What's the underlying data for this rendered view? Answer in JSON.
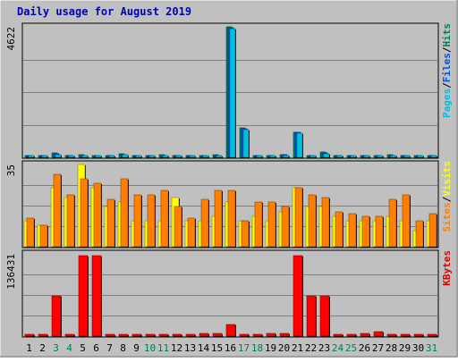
{
  "chart_data": {
    "title": "Daily usage for August 2019",
    "days": [
      "1",
      "2",
      "3",
      "4",
      "5",
      "6",
      "7",
      "8",
      "9",
      "10",
      "11",
      "12",
      "13",
      "14",
      "15",
      "16",
      "17",
      "18",
      "19",
      "20",
      "21",
      "22",
      "23",
      "24",
      "25",
      "26",
      "27",
      "28",
      "29",
      "30",
      "31"
    ],
    "weekend_days": [
      "3",
      "4",
      "10",
      "11",
      "17",
      "18",
      "24",
      "25",
      "31"
    ],
    "panels": [
      {
        "type": "bar",
        "id": "top",
        "ymax": 4622,
        "ymax_label": "4622",
        "legend": [
          {
            "text": "Pages",
            "color": "#00c0e0"
          },
          {
            "text": "/",
            "color": "#000000"
          },
          {
            "text": "Files",
            "color": "#0050e0"
          },
          {
            "text": "/",
            "color": "#000000"
          },
          {
            "text": "Hits",
            "color": "#008060"
          }
        ],
        "series": [
          {
            "name": "Hits",
            "color": "#008060",
            "values": [
              35,
              35,
              150,
              60,
              90,
              70,
              70,
              120,
              70,
              60,
              90,
              60,
              50,
              50,
              80,
              4622,
              1050,
              60,
              55,
              90,
              900,
              65,
              180,
              65,
              60,
              60,
              60,
              80,
              70,
              60,
              60
            ]
          },
          {
            "name": "Files",
            "color": "#0050e0",
            "values": [
              30,
              30,
              120,
              50,
              75,
              60,
              60,
              100,
              60,
              50,
              75,
              50,
              45,
              40,
              70,
              4600,
              1020,
              50,
              50,
              80,
              880,
              55,
              160,
              55,
              50,
              50,
              50,
              70,
              60,
              50,
              50
            ]
          },
          {
            "name": "Pages",
            "color": "#00c0e0",
            "values": [
              25,
              25,
              100,
              40,
              60,
              50,
              50,
              80,
              50,
              40,
              60,
              40,
              35,
              35,
              60,
              4560,
              980,
              45,
              45,
              70,
              850,
              45,
              140,
              45,
              40,
              40,
              40,
              60,
              50,
              40,
              40
            ]
          }
        ]
      },
      {
        "type": "bar",
        "id": "middle",
        "ymax": 35,
        "ymax_label": "35",
        "legend": [
          {
            "text": "Sites",
            "color": "#ff8000"
          },
          {
            "text": "/",
            "color": "#000000"
          },
          {
            "text": "Visits",
            "color": "#ffff00"
          }
        ],
        "series": [
          {
            "name": "Visits",
            "color": "#ffff00",
            "values": [
              11,
              9,
              25,
              21,
              35,
              25,
              17,
              19,
              11,
              11,
              11,
              21,
              11,
              11,
              13,
              19,
              11,
              13,
              11,
              15,
              25,
              17,
              17,
              13,
              11,
              11,
              11,
              13,
              11,
              7,
              11
            ]
          },
          {
            "name": "Sites",
            "color": "#ff8000",
            "values": [
              12,
              9,
              31,
              22,
              29,
              27,
              20,
              29,
              22,
              22,
              24,
              17,
              12,
              20,
              24,
              24,
              11,
              19,
              19,
              17,
              25,
              22,
              21,
              15,
              14,
              13,
              13,
              20,
              22,
              11,
              14
            ]
          }
        ]
      },
      {
        "type": "bar",
        "id": "bottom",
        "ymax": 136431,
        "ymax_label": "136431",
        "legend": [
          {
            "text": "KBytes",
            "color": "#e00000"
          }
        ],
        "series": [
          {
            "name": "KBytes",
            "color": "#ff0000",
            "values": [
              2000,
              2000,
              66000,
              2000,
              133000,
              133000,
              2000,
              2000,
              3000,
              2000,
              3000,
              3000,
              2000,
              5000,
              5000,
              20000,
              3000,
              2000,
              5000,
              4000,
              133000,
              67000,
              67000,
              3000,
              3000,
              4000,
              7000,
              2000,
              3000,
              3000,
              2000
            ]
          }
        ]
      }
    ]
  }
}
